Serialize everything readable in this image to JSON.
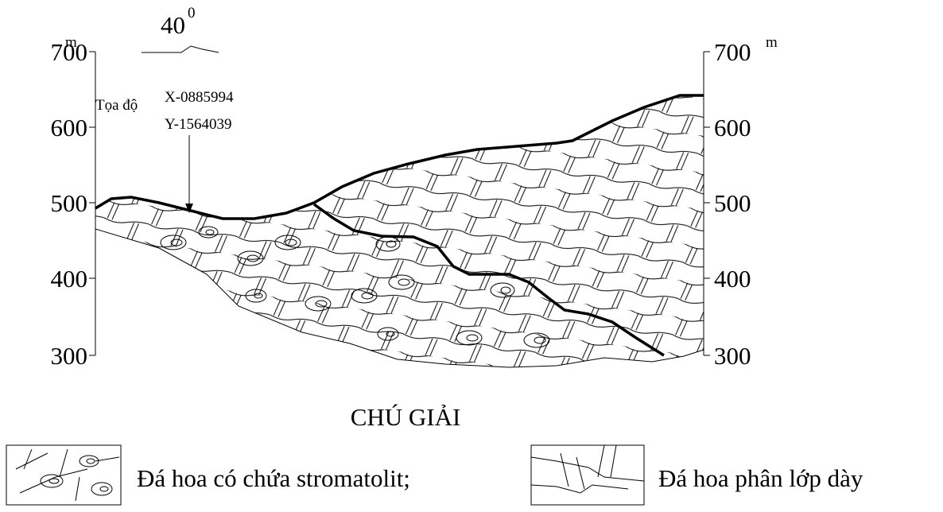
{
  "orientation": {
    "angle": "40",
    "degree": "0"
  },
  "axes": {
    "unit": "m",
    "left": [
      "700",
      "600",
      "500",
      "400",
      "300"
    ],
    "right": [
      "700",
      "600",
      "500",
      "400",
      "300"
    ]
  },
  "annotation": {
    "label": "Tọa độ",
    "x": "X-0885994",
    "y": "Y-1564039"
  },
  "legend": {
    "title": "CHÚ GIẢI",
    "items": [
      "Đá hoa có chứa stromatolit;",
      "Đá hoa phân lớp dày"
    ]
  }
}
